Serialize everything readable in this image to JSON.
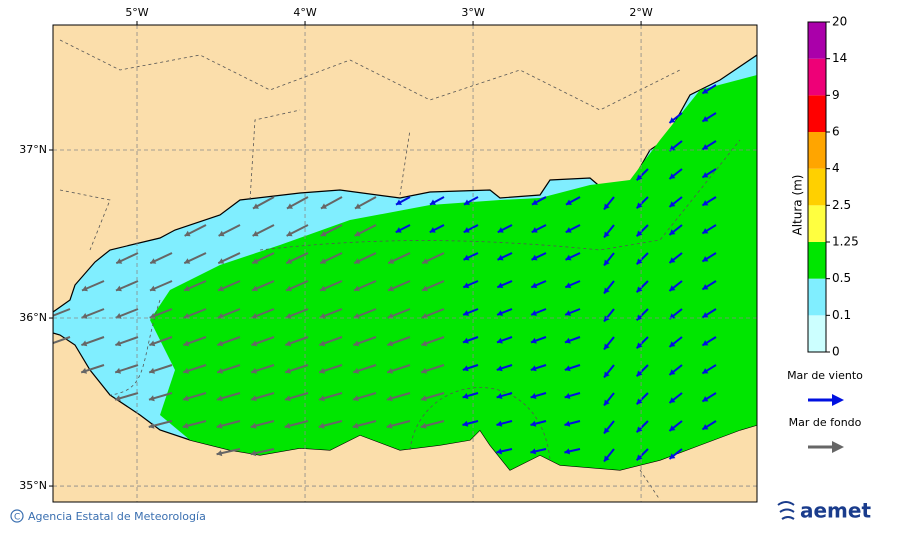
{
  "map": {
    "lon_range": [
      -5.5,
      -1.31
    ],
    "lat_range": [
      34.905,
      37.744
    ],
    "lon_ticks": [
      {
        "value": -5,
        "label": "5°W"
      },
      {
        "value": -4,
        "label": "4°W"
      },
      {
        "value": -3,
        "label": "3°W"
      },
      {
        "value": -2,
        "label": "2°W"
      }
    ],
    "lat_ticks": [
      {
        "value": 37,
        "label": "37°N"
      },
      {
        "value": 36,
        "label": "36°N"
      },
      {
        "value": 35,
        "label": "35°N"
      }
    ],
    "grid": true
  },
  "colorbar": {
    "title": "Altura (m)",
    "levels": [
      0,
      0.1,
      0.5,
      1.25,
      2.5,
      4,
      6,
      9,
      14,
      20
    ],
    "colors": [
      "#ccffff",
      "#80eeff",
      "#00e600",
      "#ffff40",
      "#ffd000",
      "#ffa500",
      "#ff0000",
      "#ee0077",
      "#aa00aa"
    ]
  },
  "legend": [
    {
      "label": "Mar de viento",
      "color": "#0010e0"
    },
    {
      "label": "Mar de fondo",
      "color": "#666666"
    }
  ],
  "footer": {
    "credit": "Agencia Estatal de Meteorología",
    "logo": "aemet"
  }
}
